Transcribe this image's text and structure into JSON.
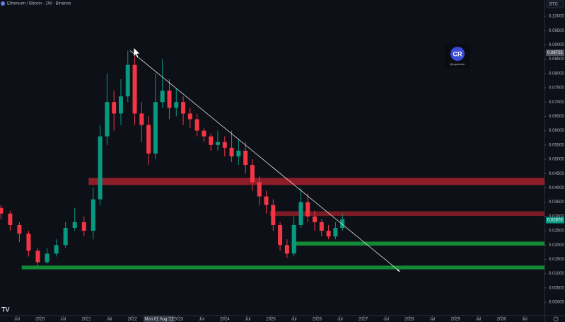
{
  "chart_data": {
    "type": "candlestick",
    "title": "Ethereum / Bitcoin · 1W · Binance",
    "currency": "BTC",
    "x": [
      2019.15,
      2019.35,
      2019.55,
      2019.75,
      2019.95,
      2020.15,
      2020.35,
      2020.55,
      2020.75,
      2020.95,
      2021.15,
      2021.3,
      2021.45,
      2021.6,
      2021.75,
      2021.9,
      2022.05,
      2022.2,
      2022.35,
      2022.5,
      2022.65,
      2022.8,
      2022.95,
      2023.1,
      2023.25,
      2023.4,
      2023.55,
      2023.7,
      2023.85,
      2024.0,
      2024.15,
      2024.3,
      2024.45,
      2024.6,
      2024.75,
      2024.9,
      2025.05,
      2025.2,
      2025.35,
      2025.5,
      2025.65,
      2025.8,
      2025.95,
      2026.1,
      2026.25,
      2026.4,
      2026.55
    ],
    "open": [
      0.033,
      0.031,
      0.027,
      0.024,
      0.018,
      0.014,
      0.017,
      0.02,
      0.026,
      0.028,
      0.025,
      0.036,
      0.058,
      0.07,
      0.066,
      0.072,
      0.083,
      0.066,
      0.062,
      0.052,
      0.07,
      0.074,
      0.068,
      0.07,
      0.066,
      0.064,
      0.06,
      0.058,
      0.055,
      0.056,
      0.054,
      0.051,
      0.053,
      0.048,
      0.042,
      0.037,
      0.034,
      0.027,
      0.02,
      0.017,
      0.027,
      0.035,
      0.03,
      0.028,
      0.025,
      0.023,
      0.026
    ],
    "high": [
      0.034,
      0.032,
      0.028,
      0.025,
      0.019,
      0.019,
      0.022,
      0.028,
      0.033,
      0.03,
      0.04,
      0.062,
      0.08,
      0.074,
      0.078,
      0.088,
      0.086,
      0.07,
      0.065,
      0.08,
      0.085,
      0.078,
      0.075,
      0.072,
      0.068,
      0.066,
      0.061,
      0.059,
      0.06,
      0.058,
      0.06,
      0.057,
      0.056,
      0.05,
      0.044,
      0.039,
      0.036,
      0.028,
      0.022,
      0.03,
      0.04,
      0.038,
      0.032,
      0.029,
      0.027,
      0.028,
      0.031
    ],
    "low": [
      0.029,
      0.025,
      0.021,
      0.016,
      0.0125,
      0.0135,
      0.016,
      0.019,
      0.025,
      0.023,
      0.022,
      0.034,
      0.055,
      0.06,
      0.062,
      0.07,
      0.062,
      0.056,
      0.048,
      0.05,
      0.068,
      0.064,
      0.065,
      0.062,
      0.061,
      0.058,
      0.056,
      0.053,
      0.053,
      0.051,
      0.049,
      0.048,
      0.045,
      0.039,
      0.034,
      0.031,
      0.025,
      0.018,
      0.0155,
      0.016,
      0.026,
      0.028,
      0.025,
      0.023,
      0.022,
      0.022,
      0.025
    ],
    "close": [
      0.031,
      0.027,
      0.024,
      0.018,
      0.014,
      0.017,
      0.02,
      0.026,
      0.028,
      0.025,
      0.036,
      0.058,
      0.07,
      0.066,
      0.072,
      0.083,
      0.066,
      0.062,
      0.052,
      0.07,
      0.074,
      0.068,
      0.07,
      0.066,
      0.064,
      0.06,
      0.058,
      0.055,
      0.056,
      0.054,
      0.051,
      0.053,
      0.048,
      0.042,
      0.037,
      0.034,
      0.027,
      0.02,
      0.017,
      0.027,
      0.035,
      0.03,
      0.028,
      0.025,
      0.023,
      0.026,
      0.029
    ],
    "up_color": "#089981",
    "down_color": "#f23645",
    "xlim": [
      2019.13,
      2030.93
    ],
    "xticks": [
      {
        "value": 2019.5,
        "label": "Jul"
      },
      {
        "value": 2020,
        "label": "2020"
      },
      {
        "value": 2020.5,
        "label": "Jul"
      },
      {
        "value": 2021,
        "label": "2021"
      },
      {
        "value": 2021.5,
        "label": "Jul"
      },
      {
        "value": 2022,
        "label": "2022"
      },
      {
        "value": 2023,
        "label": "2023"
      },
      {
        "value": 2023.5,
        "label": "Jul"
      },
      {
        "value": 2024,
        "label": "2024"
      },
      {
        "value": 2024.5,
        "label": "Jul"
      },
      {
        "value": 2025,
        "label": "2025"
      },
      {
        "value": 2025.5,
        "label": "Jul"
      },
      {
        "value": 2026,
        "label": "2026"
      },
      {
        "value": 2026.5,
        "label": "Jul"
      },
      {
        "value": 2027,
        "label": "2027"
      },
      {
        "value": 2027.5,
        "label": "Jul"
      },
      {
        "value": 2028,
        "label": "2028"
      },
      {
        "value": 2028.5,
        "label": "Jul"
      },
      {
        "value": 2029,
        "label": "2029"
      },
      {
        "value": 2029.5,
        "label": "Jul"
      },
      {
        "value": 2030,
        "label": "2030"
      },
      {
        "value": 2030.5,
        "label": "Jul"
      }
    ],
    "crosshair": {
      "value": 2022.58,
      "label": "Mon 01 Aug '22"
    },
    "ylim": [
      -0.0032,
      0.1057
    ],
    "yticks": [
      {
        "value": 0.1,
        "label": "0.10000"
      },
      {
        "value": 0.095,
        "label": "0.09500"
      },
      {
        "value": 0.09,
        "label": "0.09000"
      },
      {
        "value": 0.085,
        "label": "0.08500"
      },
      {
        "value": 0.08,
        "label": "0.08000"
      },
      {
        "value": 0.075,
        "label": "0.07500"
      },
      {
        "value": 0.07,
        "label": "0.07000"
      },
      {
        "value": 0.065,
        "label": "0.06500"
      },
      {
        "value": 0.06,
        "label": "0.06000"
      },
      {
        "value": 0.055,
        "label": "0.05500"
      },
      {
        "value": 0.05,
        "label": "0.05000"
      },
      {
        "value": 0.045,
        "label": "0.04500"
      },
      {
        "value": 0.04,
        "label": "0.04000"
      },
      {
        "value": 0.035,
        "label": "0.03500"
      },
      {
        "value": 0.03,
        "label": "0.03000"
      },
      {
        "value": 0.025,
        "label": "0.02500"
      },
      {
        "value": 0.02,
        "label": "0.02000"
      },
      {
        "value": 0.015,
        "label": "0.01500"
      },
      {
        "value": 0.01,
        "label": "0.01000"
      },
      {
        "value": 0.005,
        "label": "0.00500"
      },
      {
        "value": 0,
        "label": "0.00000"
      }
    ],
    "marker_price": {
      "value": 0.08725,
      "label": "0.08725"
    },
    "last_price": {
      "value": 0.0287,
      "label": "0.02870"
    },
    "zones": [
      {
        "low": 0.041,
        "high": 0.0435,
        "start": 2021.05,
        "color": "#a3202b"
      },
      {
        "low": 0.0302,
        "high": 0.0318,
        "start": 2024.98,
        "color": "#8e1d27"
      },
      {
        "low": 0.0198,
        "high": 0.0212,
        "start": 2025.45,
        "color": "#14a03c"
      },
      {
        "low": 0.0115,
        "high": 0.0128,
        "start": 2019.6,
        "color": "#14a03c"
      }
    ],
    "trendline": {
      "x": [
        2021.95,
        2027.8
      ],
      "y": [
        0.088,
        0.0107
      ],
      "color": "#e6e6e6"
    },
    "logo": "CR",
    "watermark": "@cryptorover"
  }
}
